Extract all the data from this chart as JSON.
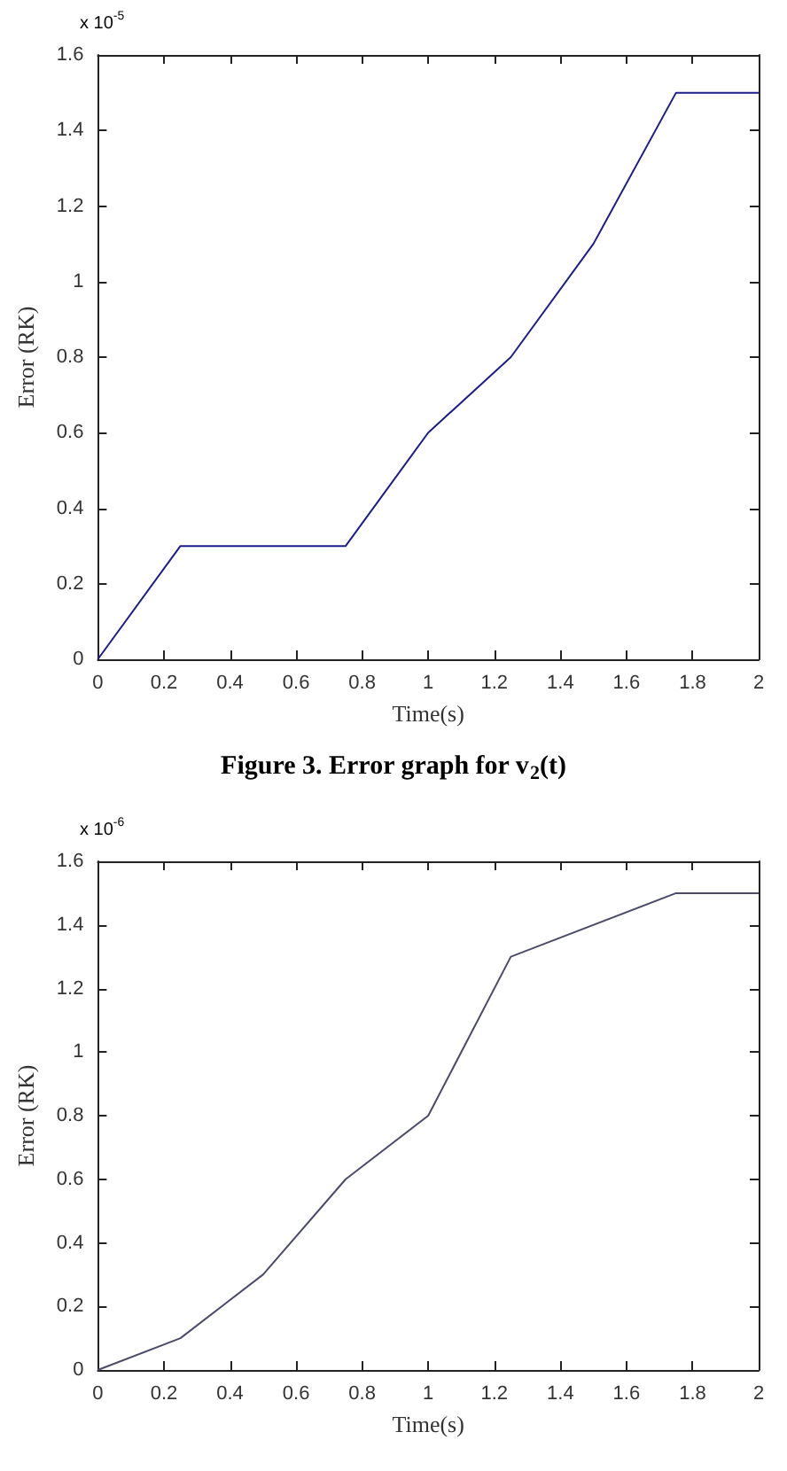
{
  "chart_data": [
    {
      "type": "line",
      "xlabel": "Time(s)",
      "ylabel": "Error (RK)",
      "annotations": [
        "x 10$^{-5}$",
        "Figure 3. Error graph for v$_{2}$(t)"
      ],
      "x": [
        0,
        0.25,
        0.75,
        1,
        1.25,
        1.5,
        1.75,
        2
      ],
      "series": [
        {
          "color": "#1c1c8a",
          "values": [
            0,
            0.3,
            0.3,
            0.6,
            0.8,
            1.1,
            1.5,
            1.5
          ]
        }
      ],
      "xlim": [
        0,
        2
      ],
      "xticks": [
        0,
        0.2,
        0.4,
        0.6,
        0.8,
        1,
        1.2,
        1.4,
        1.6,
        1.8,
        2
      ],
      "ylim": [
        0,
        1.6
      ],
      "yticks": [
        0,
        0.2,
        0.4,
        0.6,
        0.8,
        1,
        1.2,
        1.4,
        1.6
      ],
      "grid": false,
      "marker": "none",
      "line_style": "solid"
    },
    {
      "type": "line",
      "xlabel": "Time(s)",
      "ylabel": "Error (RK)",
      "annotations": [
        "x 10$^{-6}$"
      ],
      "x": [
        0,
        0.25,
        0.5,
        0.75,
        1,
        1.25,
        1.75,
        2
      ],
      "series": [
        {
          "color": "#4a4a6a",
          "values": [
            0,
            0.1,
            0.3,
            0.6,
            0.8,
            1.3,
            1.5,
            1.5
          ]
        }
      ],
      "xlim": [
        0,
        2
      ],
      "xticks": [
        0,
        0.2,
        0.4,
        0.6,
        0.8,
        1,
        1.2,
        1.4,
        1.6,
        1.8,
        2
      ],
      "ylim": [
        0,
        1.6
      ],
      "yticks": [
        0,
        0.2,
        0.4,
        0.6,
        0.8,
        1,
        1.2,
        1.4,
        1.6
      ],
      "grid": false,
      "marker": "none",
      "line_style": "solid"
    }
  ]
}
